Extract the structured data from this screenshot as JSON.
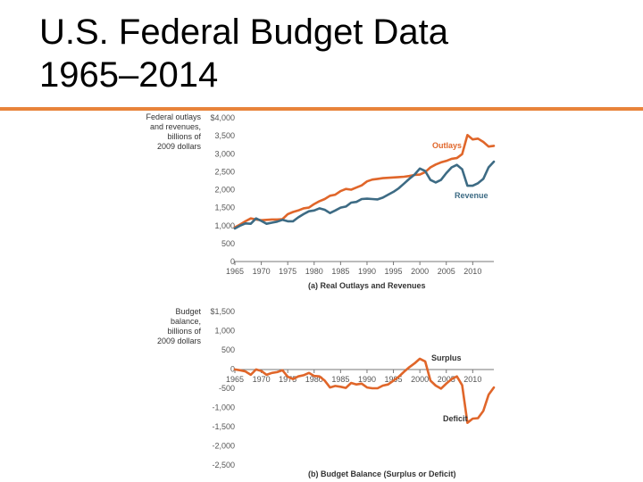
{
  "slide": {
    "title_line1": "U.S. Federal Budget Data",
    "title_line2": "1965–2014"
  },
  "colors": {
    "accent": "#e8833a",
    "outlays": "#e0662a",
    "revenue": "#3d6b84"
  },
  "chart_data": [
    {
      "type": "line",
      "title": "",
      "caption": "(a) Real Outlays and Revenues",
      "ylabel_lines": [
        "Federal outlays",
        "and revenues,",
        "billions of",
        "2009 dollars"
      ],
      "xlabel": "",
      "xlim": [
        1965,
        2014
      ],
      "ylim": [
        0,
        4000
      ],
      "x_ticks": [
        1965,
        1970,
        1975,
        1980,
        1985,
        1990,
        1995,
        2000,
        2005,
        2010
      ],
      "y_tick_labels": [
        "0",
        "500",
        "1,000",
        "1,500",
        "2,000",
        "2,500",
        "3,000",
        "3,500",
        "$4,000"
      ],
      "y_tick_values": [
        0,
        500,
        1000,
        1500,
        2000,
        2500,
        3000,
        3500,
        4000
      ],
      "grid": false,
      "series": [
        {
          "name": "Outlays",
          "color": "#e0662a",
          "x": [
            1965,
            1966,
            1967,
            1968,
            1969,
            1970,
            1971,
            1972,
            1973,
            1974,
            1975,
            1976,
            1977,
            1978,
            1979,
            1980,
            1981,
            1982,
            1983,
            1984,
            1985,
            1986,
            1987,
            1988,
            1989,
            1990,
            1991,
            1992,
            1993,
            1994,
            1995,
            1996,
            1997,
            1998,
            1999,
            2000,
            2001,
            2002,
            2003,
            2004,
            2005,
            2006,
            2007,
            2008,
            2009,
            2010,
            2011,
            2012,
            2013,
            2014
          ],
          "y": [
            950,
            1030,
            1120,
            1200,
            1170,
            1150,
            1160,
            1170,
            1170,
            1180,
            1320,
            1380,
            1420,
            1480,
            1500,
            1600,
            1680,
            1740,
            1830,
            1860,
            1960,
            2020,
            2000,
            2060,
            2120,
            2230,
            2280,
            2300,
            2320,
            2330,
            2340,
            2350,
            2360,
            2380,
            2410,
            2420,
            2490,
            2620,
            2700,
            2760,
            2800,
            2860,
            2880,
            2990,
            3520,
            3400,
            3420,
            3330,
            3200,
            3220
          ]
        },
        {
          "name": "Revenue",
          "color": "#3d6b84",
          "x": [
            1965,
            1966,
            1967,
            1968,
            1969,
            1970,
            1971,
            1972,
            1973,
            1974,
            1975,
            1976,
            1977,
            1978,
            1979,
            1980,
            1981,
            1982,
            1983,
            1984,
            1985,
            1986,
            1987,
            1988,
            1989,
            1990,
            1991,
            1992,
            1993,
            1994,
            1995,
            1996,
            1997,
            1998,
            1999,
            2000,
            2001,
            2002,
            2003,
            2004,
            2005,
            2006,
            2007,
            2008,
            2009,
            2010,
            2011,
            2012,
            2013,
            2014
          ],
          "y": [
            920,
            1000,
            1060,
            1050,
            1200,
            1130,
            1050,
            1080,
            1110,
            1160,
            1120,
            1120,
            1230,
            1320,
            1400,
            1420,
            1480,
            1440,
            1350,
            1420,
            1500,
            1530,
            1640,
            1660,
            1740,
            1750,
            1740,
            1730,
            1780,
            1860,
            1940,
            2040,
            2170,
            2300,
            2420,
            2590,
            2520,
            2270,
            2200,
            2270,
            2460,
            2620,
            2690,
            2570,
            2110,
            2110,
            2180,
            2300,
            2620,
            2780
          ]
        }
      ]
    },
    {
      "type": "line",
      "title": "",
      "caption": "(b) Budget Balance (Surplus or Deficit)",
      "ylabel_lines": [
        "Budget",
        "balance,",
        "billions of",
        "2009 dollars"
      ],
      "xlabel": "",
      "xlim": [
        1965,
        2014
      ],
      "ylim": [
        -2500,
        1500
      ],
      "x_ticks": [
        1965,
        1970,
        1975,
        1980,
        1985,
        1990,
        1995,
        2000,
        2005,
        2010
      ],
      "y_tick_labels": [
        "-2,500",
        "-2,000",
        "-1,500",
        "-1,000",
        "-500",
        "0",
        "500",
        "1,000",
        "$1,500"
      ],
      "y_tick_values": [
        -2500,
        -2000,
        -1500,
        -1000,
        -500,
        0,
        500,
        1000,
        1500
      ],
      "grid": false,
      "annotations": [
        "Surplus",
        "Deficit"
      ],
      "series": [
        {
          "name": "",
          "color": "#e0662a",
          "x": [
            1965,
            1966,
            1967,
            1968,
            1969,
            1970,
            1971,
            1972,
            1973,
            1974,
            1975,
            1976,
            1977,
            1978,
            1979,
            1980,
            1981,
            1982,
            1983,
            1984,
            1985,
            1986,
            1987,
            1988,
            1989,
            1990,
            1991,
            1992,
            1993,
            1994,
            1995,
            1996,
            1997,
            1998,
            1999,
            2000,
            2001,
            2002,
            2003,
            2004,
            2005,
            2006,
            2007,
            2008,
            2009,
            2010,
            2011,
            2012,
            2013,
            2014
          ],
          "y": [
            -10,
            -30,
            -60,
            -150,
            -10,
            -50,
            -150,
            -100,
            -80,
            -30,
            -200,
            -260,
            -190,
            -160,
            -100,
            -180,
            -190,
            -300,
            -480,
            -440,
            -460,
            -490,
            -360,
            -400,
            -380,
            -480,
            -500,
            -500,
            -430,
            -400,
            -300,
            -200,
            -70,
            50,
            150,
            270,
            200,
            -300,
            -430,
            -510,
            -380,
            -260,
            -190,
            -420,
            -1400,
            -1290,
            -1280,
            -1090,
            -670,
            -480
          ]
        }
      ]
    }
  ]
}
